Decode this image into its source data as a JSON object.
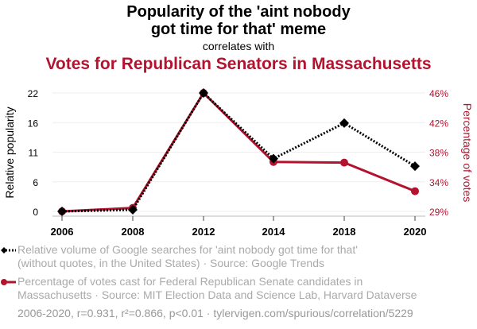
{
  "title": "Popularity of the 'aint nobody got time for that' meme",
  "title_line1": "Popularity of the 'aint nobody",
  "title_line2": "got time for that' meme",
  "subtitle": "correlates with",
  "title2": "Votes for Republican Senators in Massachusetts",
  "legend": {
    "series1_line1": "Relative volume of Google searches for 'aint nobody got time for that'",
    "series1_line2": "(without quotes, in the United States) · Source: Google Trends",
    "series2_line1": "Percentage of votes cast for Federal Republican Senate candidates in",
    "series2_line2": "Massachusetts · Source: MIT Election Data and Science Lab, Harvard Dataverse"
  },
  "footer": "2006-2020, r=0.931, r²=0.866, p<0.01 · tylervigen.com/spurious/correlation/5229",
  "chart_data": {
    "type": "line",
    "x": [
      "2006",
      "2008",
      "2012",
      "2014",
      "2018",
      "2020"
    ],
    "series": [
      {
        "name": "Relative volume of Google searches for 'aint nobody got time for that'",
        "axis": "left",
        "color": "#000000",
        "style": "dotted",
        "marker": "diamond",
        "values": [
          0,
          0.3,
          22,
          9.8,
          16.4,
          8.4
        ]
      },
      {
        "name": "Percentage of votes cast for Federal Republican Senate candidates in Massachusetts",
        "axis": "right",
        "color": "#b4122e",
        "style": "solid",
        "marker": "circle",
        "values": [
          29.0,
          29.5,
          46.0,
          36.1,
          36.0,
          31.9
        ]
      }
    ],
    "ylabel": "Relative popularity",
    "y2label": "Percentage of votes",
    "yticks": [
      "22",
      "16",
      "11",
      "6",
      "0"
    ],
    "y2ticks": [
      "46%",
      "42%",
      "38%",
      "34%",
      "29%"
    ],
    "ylim": [
      0,
      22
    ],
    "y2lim": [
      29,
      46
    ],
    "grid": true,
    "legend_position": "bottom"
  }
}
